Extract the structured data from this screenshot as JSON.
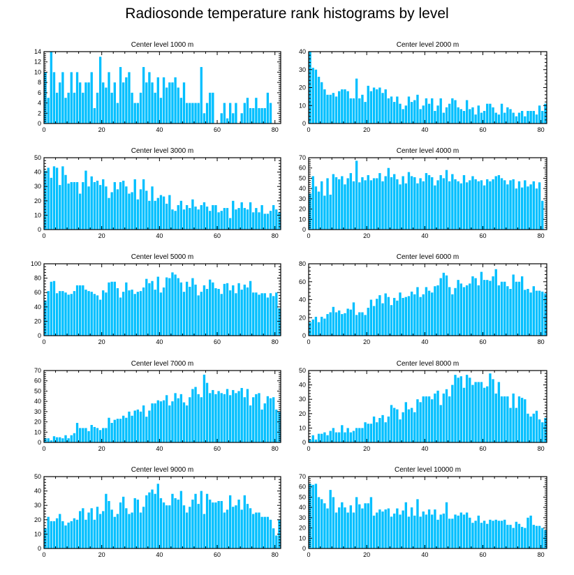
{
  "title": "Radiosonde temperature rank histograms by level",
  "bar_color": "#00bfff",
  "chart_data": [
    {
      "type": "bar",
      "title": "Center level 1000 m",
      "xlabel": "",
      "ylabel": "",
      "xlim": [
        0,
        82
      ],
      "ylim": [
        0,
        14
      ],
      "xticks": [
        0,
        20,
        40,
        60,
        80
      ],
      "yticks": [
        0,
        2,
        4,
        6,
        8,
        10,
        12,
        14
      ],
      "values": [
        10,
        5,
        14,
        10,
        6,
        8,
        10,
        5,
        6,
        10,
        6,
        10,
        8,
        6,
        8,
        8,
        10,
        3,
        6,
        13,
        8,
        7,
        10,
        6,
        8,
        4,
        11,
        8,
        9,
        10,
        6,
        4,
        4,
        6,
        11,
        8,
        10,
        8,
        6,
        9,
        5,
        9,
        7,
        8,
        8,
        9,
        7,
        5,
        8,
        4,
        4,
        4,
        4,
        4,
        11,
        2,
        4,
        6,
        6,
        0,
        0,
        2,
        4,
        1,
        4,
        2,
        4,
        0,
        2,
        4,
        5,
        3,
        3,
        5,
        3,
        3,
        3,
        6,
        4,
        0,
        0,
        0
      ]
    },
    {
      "type": "bar",
      "title": "Center level 2000 m",
      "xlabel": "",
      "ylabel": "",
      "xlim": [
        0,
        82
      ],
      "ylim": [
        0,
        40
      ],
      "xticks": [
        0,
        20,
        40,
        60,
        80
      ],
      "yticks": [
        0,
        10,
        20,
        30,
        40
      ],
      "values": [
        40,
        31,
        30,
        26,
        23,
        19,
        16,
        16,
        17,
        15,
        18,
        19,
        19,
        18,
        14,
        14,
        25,
        14,
        16,
        12,
        21,
        18,
        20,
        19,
        20,
        17,
        19,
        14,
        15,
        12,
        15,
        11,
        8,
        10,
        15,
        12,
        13,
        16,
        8,
        10,
        14,
        11,
        14,
        7,
        10,
        14,
        6,
        9,
        11,
        14,
        13,
        9,
        8,
        7,
        13,
        8,
        9,
        5,
        10,
        6,
        7,
        11,
        11,
        9,
        6,
        5,
        11,
        6,
        9,
        8,
        6,
        4,
        6,
        7,
        4,
        7,
        7,
        7,
        5,
        10,
        7,
        11
      ]
    },
    {
      "type": "bar",
      "title": "Center level 3000 m",
      "xlabel": "",
      "ylabel": "",
      "xlim": [
        0,
        82
      ],
      "ylim": [
        0,
        50
      ],
      "xticks": [
        0,
        20,
        40,
        60,
        80
      ],
      "yticks": [
        0,
        10,
        20,
        30,
        40,
        50
      ],
      "values": [
        41,
        43,
        36,
        44,
        43,
        31,
        44,
        38,
        32,
        33,
        33,
        33,
        25,
        33,
        41,
        30,
        37,
        33,
        34,
        31,
        35,
        30,
        22,
        26,
        33,
        28,
        33,
        34,
        30,
        25,
        26,
        35,
        21,
        28,
        35,
        27,
        20,
        30,
        20,
        22,
        24,
        23,
        18,
        24,
        14,
        13,
        17,
        20,
        14,
        17,
        15,
        21,
        16,
        14,
        17,
        19,
        16,
        13,
        17,
        17,
        12,
        13,
        15,
        15,
        8,
        20,
        14,
        15,
        19,
        15,
        14,
        19,
        12,
        15,
        12,
        17,
        11,
        11,
        13,
        17,
        14,
        12
      ]
    },
    {
      "type": "bar",
      "title": "Center level 4000 m",
      "xlabel": "",
      "ylabel": "",
      "xlim": [
        0,
        82
      ],
      "ylim": [
        0,
        70
      ],
      "xticks": [
        0,
        20,
        40,
        60,
        80
      ],
      "yticks": [
        0,
        10,
        20,
        30,
        40,
        50,
        60,
        70
      ],
      "values": [
        35,
        52,
        42,
        37,
        47,
        33,
        50,
        34,
        54,
        51,
        49,
        52,
        44,
        50,
        55,
        47,
        67,
        46,
        51,
        48,
        53,
        48,
        50,
        50,
        55,
        47,
        52,
        60,
        51,
        54,
        49,
        44,
        52,
        45,
        56,
        52,
        51,
        45,
        50,
        47,
        55,
        53,
        51,
        43,
        48,
        53,
        50,
        58,
        47,
        54,
        49,
        47,
        45,
        53,
        46,
        48,
        52,
        49,
        47,
        48,
        43,
        49,
        47,
        49,
        52,
        53,
        50,
        48,
        44,
        48,
        49,
        40,
        47,
        41,
        48,
        42,
        44,
        47,
        40,
        46,
        28,
        0
      ]
    },
    {
      "type": "bar",
      "title": "Center level 5000 m",
      "xlabel": "",
      "ylabel": "",
      "xlim": [
        0,
        82
      ],
      "ylim": [
        0,
        100
      ],
      "xticks": [
        0,
        20,
        40,
        60,
        80
      ],
      "yticks": [
        0,
        20,
        40,
        60,
        80,
        100
      ],
      "values": [
        49,
        62,
        75,
        76,
        59,
        62,
        62,
        60,
        57,
        58,
        62,
        70,
        70,
        70,
        64,
        62,
        61,
        58,
        56,
        50,
        63,
        60,
        74,
        75,
        75,
        66,
        53,
        61,
        74,
        63,
        64,
        58,
        61,
        62,
        67,
        79,
        73,
        76,
        64,
        82,
        60,
        67,
        81,
        80,
        88,
        85,
        80,
        74,
        61,
        75,
        68,
        80,
        71,
        56,
        61,
        70,
        65,
        78,
        74,
        66,
        65,
        58,
        72,
        73,
        63,
        70,
        59,
        73,
        64,
        71,
        67,
        76,
        60,
        60,
        57,
        59,
        59,
        53,
        59,
        55,
        60,
        38
      ]
    },
    {
      "type": "bar",
      "title": "Center level 6000 m",
      "xlabel": "",
      "ylabel": "",
      "xlim": [
        0,
        82
      ],
      "ylim": [
        0,
        80
      ],
      "xticks": [
        0,
        20,
        40,
        60,
        80
      ],
      "yticks": [
        0,
        20,
        40,
        60,
        80
      ],
      "values": [
        15,
        18,
        21,
        15,
        21,
        19,
        24,
        26,
        32,
        26,
        28,
        24,
        25,
        30,
        29,
        37,
        23,
        26,
        26,
        23,
        31,
        40,
        33,
        41,
        45,
        36,
        47,
        43,
        34,
        42,
        39,
        48,
        42,
        43,
        44,
        49,
        46,
        54,
        43,
        46,
        54,
        50,
        48,
        55,
        56,
        64,
        70,
        67,
        54,
        46,
        53,
        62,
        58,
        54,
        56,
        58,
        66,
        64,
        56,
        71,
        62,
        62,
        61,
        66,
        74,
        56,
        60,
        60,
        55,
        52,
        68,
        60,
        60,
        66,
        51,
        52,
        48,
        55,
        50,
        50,
        49,
        47
      ]
    },
    {
      "type": "bar",
      "title": "Center level 7000 m",
      "xlabel": "",
      "ylabel": "",
      "xlim": [
        0,
        82
      ],
      "ylim": [
        0,
        70
      ],
      "xticks": [
        0,
        20,
        40,
        60,
        80
      ],
      "yticks": [
        0,
        10,
        20,
        30,
        40,
        50,
        60,
        70
      ],
      "values": [
        4,
        4,
        2,
        6,
        5,
        5,
        4,
        7,
        4,
        7,
        9,
        19,
        14,
        14,
        14,
        11,
        17,
        15,
        14,
        12,
        14,
        14,
        24,
        19,
        22,
        23,
        23,
        26,
        24,
        30,
        26,
        31,
        32,
        30,
        36,
        25,
        31,
        38,
        38,
        41,
        40,
        41,
        46,
        36,
        40,
        48,
        43,
        47,
        39,
        36,
        44,
        52,
        54,
        47,
        44,
        66,
        58,
        48,
        51,
        47,
        50,
        48,
        47,
        52,
        46,
        51,
        48,
        50,
        53,
        44,
        52,
        36,
        44,
        47,
        48,
        32,
        38,
        45,
        43,
        44,
        32,
        30
      ]
    },
    {
      "type": "bar",
      "title": "Center level 8000 m",
      "xlabel": "",
      "ylabel": "",
      "xlim": [
        0,
        82
      ],
      "ylim": [
        0,
        50
      ],
      "xticks": [
        0,
        20,
        40,
        60,
        80
      ],
      "yticks": [
        0,
        10,
        20,
        30,
        40,
        50
      ],
      "values": [
        2,
        5,
        2,
        6,
        6,
        7,
        5,
        8,
        10,
        7,
        7,
        12,
        7,
        10,
        7,
        8,
        10,
        10,
        10,
        14,
        13,
        13,
        18,
        14,
        17,
        19,
        14,
        18,
        26,
        24,
        23,
        16,
        21,
        28,
        23,
        24,
        21,
        30,
        28,
        32,
        32,
        32,
        30,
        34,
        36,
        26,
        34,
        37,
        32,
        40,
        47,
        45,
        46,
        38,
        47,
        45,
        40,
        42,
        42,
        42,
        38,
        39,
        48,
        44,
        34,
        42,
        32,
        32,
        32,
        24,
        34,
        24,
        32,
        31,
        30,
        20,
        18,
        20,
        22,
        16,
        14,
        17
      ]
    },
    {
      "type": "bar",
      "title": "Center level 9000 m",
      "xlabel": "",
      "ylabel": "",
      "xlim": [
        0,
        82
      ],
      "ylim": [
        0,
        50
      ],
      "xticks": [
        0,
        20,
        40,
        60,
        80
      ],
      "yticks": [
        0,
        10,
        20,
        30,
        40,
        50
      ],
      "values": [
        14,
        22,
        19,
        19,
        21,
        24,
        19,
        16,
        18,
        19,
        21,
        20,
        26,
        28,
        20,
        25,
        28,
        20,
        29,
        24,
        26,
        38,
        33,
        27,
        22,
        24,
        32,
        36,
        28,
        24,
        25,
        35,
        34,
        25,
        29,
        37,
        39,
        41,
        38,
        45,
        35,
        32,
        30,
        30,
        38,
        35,
        34,
        40,
        30,
        25,
        29,
        34,
        38,
        31,
        40,
        24,
        38,
        34,
        32,
        32,
        33,
        33,
        25,
        27,
        37,
        29,
        30,
        34,
        27,
        37,
        31,
        28,
        24,
        25,
        25,
        22,
        22,
        22,
        20,
        14,
        9,
        20
      ]
    },
    {
      "type": "bar",
      "title": "Center level 10000 m",
      "xlabel": "",
      "ylabel": "",
      "xlim": [
        0,
        82
      ],
      "ylim": [
        0,
        70
      ],
      "xticks": [
        0,
        20,
        40,
        60,
        80
      ],
      "yticks": [
        0,
        10,
        20,
        30,
        40,
        50,
        60,
        70
      ],
      "values": [
        63,
        62,
        63,
        50,
        48,
        44,
        39,
        57,
        50,
        35,
        40,
        45,
        40,
        35,
        42,
        35,
        50,
        43,
        39,
        44,
        44,
        50,
        32,
        35,
        38,
        36,
        38,
        39,
        31,
        34,
        39,
        33,
        37,
        45,
        31,
        40,
        32,
        48,
        31,
        36,
        33,
        38,
        33,
        38,
        28,
        33,
        34,
        45,
        29,
        29,
        33,
        32,
        35,
        33,
        35,
        30,
        25,
        27,
        32,
        25,
        27,
        24,
        28,
        27,
        28,
        27,
        27,
        28,
        23,
        23,
        20,
        26,
        24,
        21,
        20,
        30,
        32,
        23,
        22,
        22,
        20,
        18
      ]
    }
  ]
}
